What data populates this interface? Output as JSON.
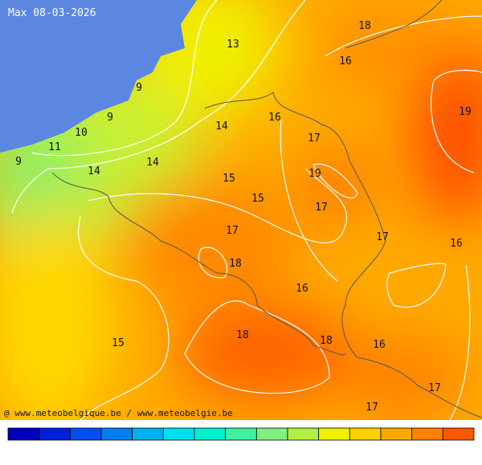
{
  "title": "Max 08-03-2026",
  "labels": [
    13,
    18,
    16,
    9,
    9,
    16,
    19,
    14,
    10,
    17,
    11,
    9,
    14,
    14,
    19,
    15,
    15,
    17,
    17,
    17,
    16,
    18,
    16,
    18,
    18,
    16,
    15,
    17,
    17
  ],
  "credit": "@ www.meteobelgique.be / www.meteobelgie.be"
}
